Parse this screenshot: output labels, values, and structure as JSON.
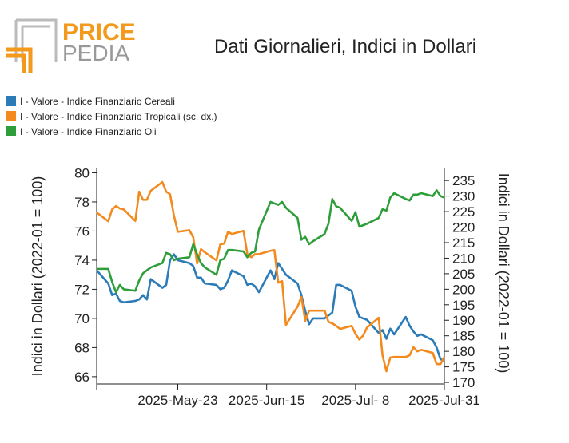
{
  "logo": {
    "line1": "PRICE",
    "line2": "PEDIA"
  },
  "chart_data": {
    "type": "line",
    "title": "Dati Giornalieri, Indici in Dollari",
    "ylabel": "Indici in Dollari (2022-01 = 100)",
    "y2label": "Indici in Dollari (2022-01 = 100)",
    "x": [
      "2025-05-02",
      "2025-05-05",
      "2025-05-06",
      "2025-05-07",
      "2025-05-08",
      "2025-05-09",
      "2025-05-12",
      "2025-05-13",
      "2025-05-14",
      "2025-05-15",
      "2025-05-16",
      "2025-05-19",
      "2025-05-20",
      "2025-05-21",
      "2025-05-22",
      "2025-05-23",
      "2025-05-26",
      "2025-05-27",
      "2025-05-28",
      "2025-05-29",
      "2025-05-30",
      "2025-06-02",
      "2025-06-03",
      "2025-06-04",
      "2025-06-05",
      "2025-06-06",
      "2025-06-09",
      "2025-06-10",
      "2025-06-11",
      "2025-06-12",
      "2025-06-13",
      "2025-06-16",
      "2025-06-17",
      "2025-06-18",
      "2025-06-19",
      "2025-06-20",
      "2025-06-23",
      "2025-06-24",
      "2025-06-25",
      "2025-06-26",
      "2025-06-27",
      "2025-06-30",
      "2025-07-01",
      "2025-07-02",
      "2025-07-03",
      "2025-07-04",
      "2025-07-07",
      "2025-07-08",
      "2025-07-09",
      "2025-07-10",
      "2025-07-11",
      "2025-07-14",
      "2025-07-15",
      "2025-07-16",
      "2025-07-17",
      "2025-07-18",
      "2025-07-21",
      "2025-07-22",
      "2025-07-23",
      "2025-07-24",
      "2025-07-25",
      "2025-07-28",
      "2025-07-29",
      "2025-07-30",
      "2025-07-31"
    ],
    "xlim": [
      "2025-05-02",
      "2025-07-31"
    ],
    "xticks": [
      {
        "value": "2025-05-23",
        "label": "2025-May-23"
      },
      {
        "value": "2025-06-15",
        "label": "2025-Jun-15"
      },
      {
        "value": "2025-07-08",
        "label": "2025-Jul- 8"
      },
      {
        "value": "2025-07-31",
        "label": "2025-Jul-31"
      }
    ],
    "ylim": [
      65.5,
      80.3
    ],
    "yticks": [
      66,
      68,
      70,
      72,
      74,
      76,
      78,
      80
    ],
    "y2lim": [
      169.5,
      238.9
    ],
    "y2ticks": [
      170,
      175,
      180,
      185,
      190,
      195,
      200,
      205,
      210,
      215,
      220,
      225,
      230,
      235
    ],
    "legend": "top-left",
    "series": [
      {
        "name": "I - Valore - Indice Finanziario Cereali",
        "color": "#2b7bb9",
        "axis": "y",
        "values": [
          73.3,
          72.4,
          71.6,
          71.7,
          71.2,
          71.1,
          71.2,
          71.3,
          71.6,
          71.3,
          72.7,
          72.1,
          72.3,
          74.0,
          74.4,
          74.0,
          73.8,
          73.6,
          72.8,
          72.8,
          72.4,
          72.3,
          72.0,
          72.1,
          72.6,
          73.3,
          72.9,
          72.3,
          72.4,
          72.2,
          71.8,
          73.3,
          72.7,
          73.8,
          73.4,
          73.0,
          72.4,
          71.6,
          70.5,
          69.6,
          70.0,
          70.0,
          70.2,
          70.4,
          72.3,
          72.3,
          71.9,
          70.8,
          70.1,
          70.0,
          69.9,
          69.0,
          69.2,
          68.6,
          69.3,
          68.9,
          70.1,
          69.5,
          69.1,
          68.8,
          68.9,
          68.5,
          68.0,
          67.2,
          67.1
        ]
      },
      {
        "name": "I - Valore - Indice Finanziario Tropicali (sc. dx.)",
        "color": "#f28a1e",
        "axis": "y2",
        "values": [
          224.7,
          221.9,
          225.7,
          226.8,
          226.0,
          225.7,
          222.0,
          231.4,
          228.8,
          228.8,
          231.7,
          234.5,
          231.4,
          230.6,
          223.7,
          218.5,
          219.0,
          216.7,
          208.3,
          212.9,
          211.9,
          209.3,
          214.4,
          214.7,
          218.5,
          217.8,
          218.8,
          211.3,
          210.3,
          211.3,
          211.3,
          212.4,
          212.6,
          202.1,
          202.6,
          188.5,
          194.4,
          197.5,
          189.8,
          193.1,
          193.1,
          193.1,
          189.5,
          189.0,
          188.2,
          187.2,
          188.2,
          185.6,
          183.8,
          185.1,
          187.7,
          190.8,
          178.7,
          173.6,
          178.0,
          178.2,
          178.2,
          178.7,
          181.3,
          180.0,
          180.5,
          179.5,
          175.9,
          175.9,
          178.2
        ]
      },
      {
        "name": "I - Valore - Indice Finanziario Oli",
        "color": "#2e9e3a",
        "axis": "y",
        "values": [
          73.4,
          73.4,
          72.5,
          71.8,
          72.3,
          72.0,
          71.9,
          72.6,
          73.1,
          73.3,
          73.5,
          73.8,
          74.5,
          74.4,
          74.0,
          74.1,
          74.2,
          75.1,
          74.4,
          73.8,
          73.5,
          73.0,
          74.0,
          74.1,
          74.7,
          74.7,
          74.6,
          74.2,
          74.5,
          74.6,
          76.1,
          78.0,
          77.9,
          77.8,
          78.0,
          77.6,
          76.9,
          75.4,
          75.6,
          75.1,
          75.3,
          75.8,
          76.5,
          78.2,
          77.7,
          77.6,
          76.7,
          77.3,
          76.3,
          76.4,
          76.5,
          76.9,
          77.5,
          77.4,
          78.3,
          78.6,
          78.2,
          78.1,
          78.5,
          78.5,
          78.6,
          78.4,
          78.8,
          78.4,
          78.3
        ]
      }
    ]
  }
}
